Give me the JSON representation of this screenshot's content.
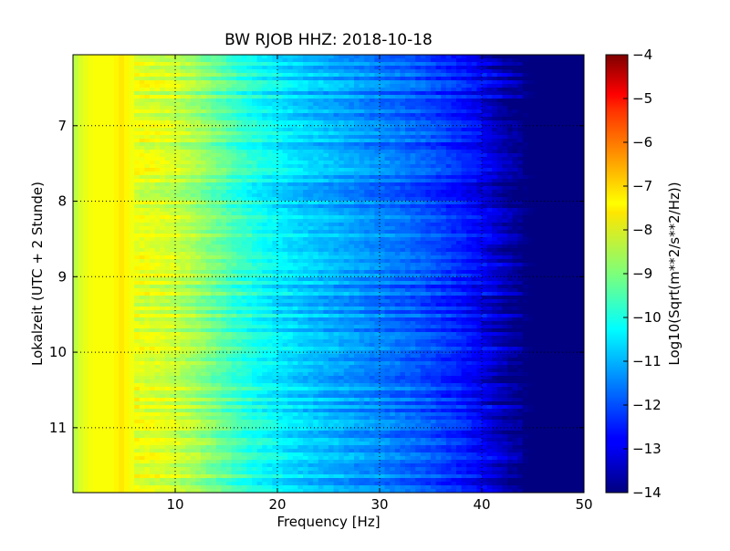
{
  "chart_data": {
    "type": "heatmap",
    "title": "BW RJOB HHZ: 2018-10-18",
    "xlabel": "Frequency [Hz]",
    "ylabel": "Lokalzeit (UTC + 2 Stunde)",
    "xlim": [
      0,
      50
    ],
    "ylim": [
      11.86,
      6.06
    ],
    "y_inverted": true,
    "x_ticks": [
      10,
      20,
      30,
      40,
      50
    ],
    "x_tick_labels": [
      "10",
      "20",
      "30",
      "40",
      "50"
    ],
    "y_ticks": [
      7,
      8,
      9,
      10,
      11
    ],
    "y_tick_labels": [
      "7",
      "8",
      "9",
      "10",
      "11"
    ],
    "grid": true,
    "colormap": "jet",
    "colorbar": {
      "label": "Log10(Sqrt(m**2/s**2/Hz))",
      "range": [
        -14,
        -4
      ],
      "ticks": [
        -4,
        -5,
        -6,
        -7,
        -8,
        -9,
        -10,
        -11,
        -12,
        -13,
        -14
      ],
      "tick_labels": [
        "−4",
        "−5",
        "−6",
        "−7",
        "−8",
        "−9",
        "−10",
        "−11",
        "−12",
        "−13",
        "−14"
      ]
    },
    "spectrum_profile": {
      "frequency_hz": [
        0,
        0.5,
        1,
        2,
        3,
        4,
        4.6,
        5,
        5.6,
        6,
        8,
        10,
        12,
        14,
        16,
        18,
        20,
        22,
        24,
        26,
        28,
        30,
        32,
        34,
        36,
        38,
        40,
        41,
        42,
        43,
        44,
        45,
        46,
        50
      ],
      "log10_amplitude": [
        -8.6,
        -8.2,
        -8.0,
        -7.8,
        -7.8,
        -7.8,
        -7.5,
        -7.6,
        -7.8,
        -8.0,
        -8.1,
        -8.3,
        -8.7,
        -9.2,
        -9.7,
        -10.1,
        -10.4,
        -10.7,
        -10.9,
        -11.1,
        -11.3,
        -11.5,
        -11.7,
        -11.9,
        -12.2,
        -12.5,
        -12.9,
        -13.2,
        -13.5,
        -13.8,
        -14.0,
        -14.0,
        -14.0,
        -14.0
      ]
    }
  }
}
